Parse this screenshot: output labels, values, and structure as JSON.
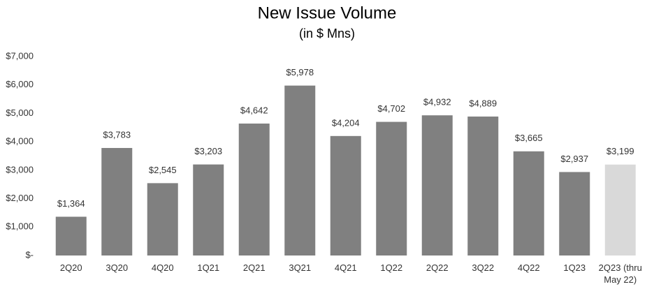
{
  "chart_data": {
    "type": "bar",
    "title": "New Issue Volume",
    "subtitle": "(in $ Mns)",
    "categories": [
      "2Q20",
      "3Q20",
      "4Q20",
      "1Q21",
      "2Q21",
      "3Q21",
      "4Q21",
      "1Q22",
      "2Q22",
      "3Q22",
      "4Q22",
      "1Q23",
      "2Q23 (thru May 22)"
    ],
    "values": [
      1364,
      3783,
      2545,
      3203,
      4642,
      5978,
      4204,
      4702,
      4932,
      4889,
      3665,
      2937,
      3199
    ],
    "value_labels": [
      "$1,364",
      "$3,783",
      "$2,545",
      "$3,203",
      "$4,642",
      "$5,978",
      "$4,204",
      "$4,702",
      "$4,932",
      "$4,889",
      "$3,665",
      "$2,937",
      "$3,199"
    ],
    "colors": [
      "#808080",
      "#808080",
      "#808080",
      "#808080",
      "#808080",
      "#808080",
      "#808080",
      "#808080",
      "#808080",
      "#808080",
      "#808080",
      "#808080",
      "#d9d9d9"
    ],
    "ylim": [
      0,
      7000
    ],
    "yticks": [
      {
        "value": 0,
        "label": "$-"
      },
      {
        "value": 1000,
        "label": "$1,000"
      },
      {
        "value": 2000,
        "label": "$2,000"
      },
      {
        "value": 3000,
        "label": "$3,000"
      },
      {
        "value": 4000,
        "label": "$4,000"
      },
      {
        "value": 5000,
        "label": "$5,000"
      },
      {
        "value": 6000,
        "label": "$6,000"
      },
      {
        "value": 7000,
        "label": "$7,000"
      }
    ],
    "grid": false
  }
}
